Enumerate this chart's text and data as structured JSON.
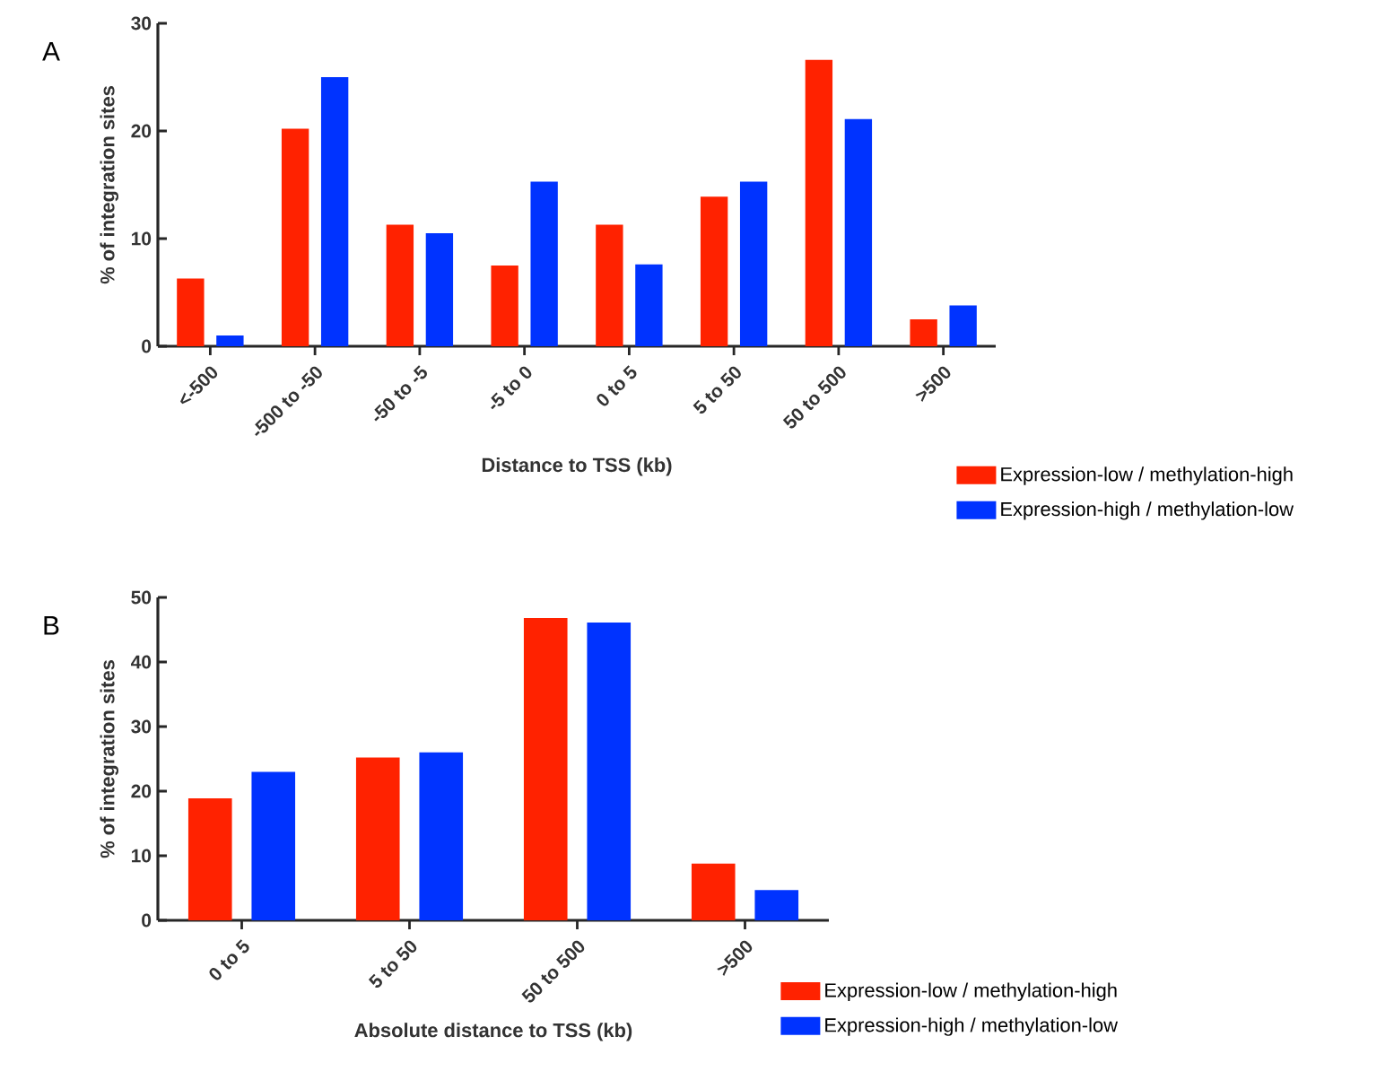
{
  "chart_data": [
    {
      "type": "bar",
      "title": "A",
      "categories": [
        "<-500",
        "-500 to -50",
        "-50 to -5",
        "-5 to 0",
        "0 to 5",
        "5 to 50",
        "50 to 500",
        ">500"
      ],
      "xlabel": "Distance to TSS (kb)",
      "ylabel": "% of integration sites",
      "ylim": [
        0,
        30
      ],
      "yticks": [
        0,
        10,
        20,
        30
      ],
      "legend": "bottom right",
      "series": [
        {
          "name": "Expression-low / methylation-high",
          "color": "#ff2200",
          "values": [
            6.3,
            20.2,
            11.3,
            7.5,
            11.3,
            13.9,
            26.6,
            2.5
          ]
        },
        {
          "name": "Expression-high / methylation-low",
          "color": "#0033ff",
          "values": [
            1.0,
            25.0,
            10.5,
            15.3,
            7.6,
            15.3,
            21.1,
            3.8
          ]
        }
      ]
    },
    {
      "type": "bar",
      "title": "B",
      "categories": [
        "0 to 5",
        "5 to 50",
        "50 to 500",
        ">500"
      ],
      "xlabel": "Absolute distance to TSS (kb)",
      "ylabel": "% of integration sites",
      "ylim": [
        0,
        50
      ],
      "yticks": [
        0,
        10,
        20,
        30,
        40,
        50
      ],
      "legend": "bottom right",
      "series": [
        {
          "name": "Expression-low / methylation-high",
          "color": "#ff2200",
          "values": [
            18.9,
            25.2,
            46.8,
            8.8
          ]
        },
        {
          "name": "Expression-high / methylation-low",
          "color": "#0033ff",
          "values": [
            23.0,
            26.0,
            46.1,
            4.7
          ]
        }
      ]
    }
  ]
}
